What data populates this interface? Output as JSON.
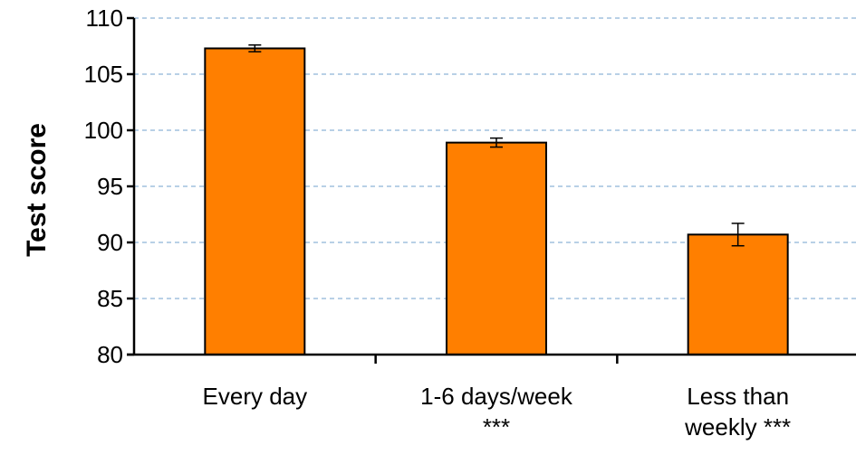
{
  "chart_data": {
    "type": "bar",
    "title": "",
    "xlabel": "",
    "ylabel": "Test score",
    "categories": [
      [
        "Every day"
      ],
      [
        "1-6 days/week",
        "***"
      ],
      [
        "Less than",
        "weekly ***"
      ]
    ],
    "values": [
      107.3,
      98.9,
      90.7
    ],
    "error": [
      0.3,
      0.4,
      1.0
    ],
    "ylim": [
      80,
      110
    ],
    "yticks": [
      80,
      85,
      90,
      95,
      100,
      105,
      110
    ],
    "grid": true,
    "legend": "none",
    "colors": {
      "bar_fill": "#FF7F00",
      "bar_stroke": "#000000",
      "grid": "#8DB4D6",
      "axis": "#000000"
    }
  }
}
